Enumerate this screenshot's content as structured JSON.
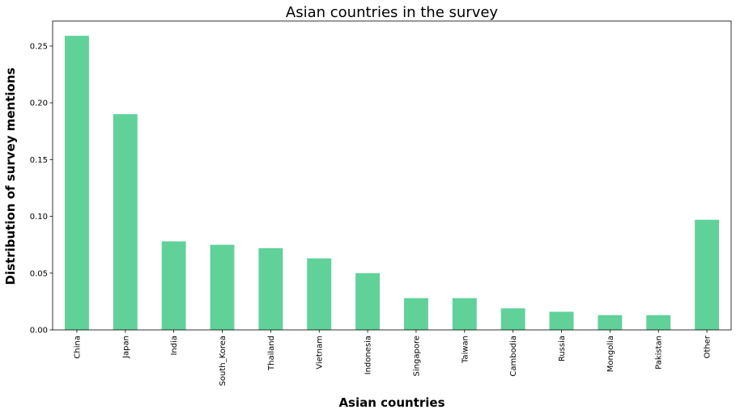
{
  "chart_data": {
    "type": "bar",
    "title": "Asian countries in the survey",
    "xlabel": "Asian countries",
    "ylabel": "Distribution of survey mentions",
    "categories": [
      "China",
      "Japan",
      "India",
      "South_Korea",
      "Thailand",
      "Vietnam",
      "Indonesia",
      "Singapore",
      "Taiwan",
      "Cambodia",
      "Russia",
      "Mongolia",
      "Pakistan",
      "Other"
    ],
    "values": [
      0.259,
      0.19,
      0.078,
      0.075,
      0.072,
      0.063,
      0.05,
      0.028,
      0.028,
      0.019,
      0.016,
      0.013,
      0.013,
      0.097
    ],
    "yticks": [
      "0.00",
      "0.05",
      "0.10",
      "0.15",
      "0.20",
      "0.25"
    ],
    "ylim": [
      0,
      0.272
    ],
    "bar_color": "#61d19a",
    "grid": false,
    "legend": "none"
  }
}
